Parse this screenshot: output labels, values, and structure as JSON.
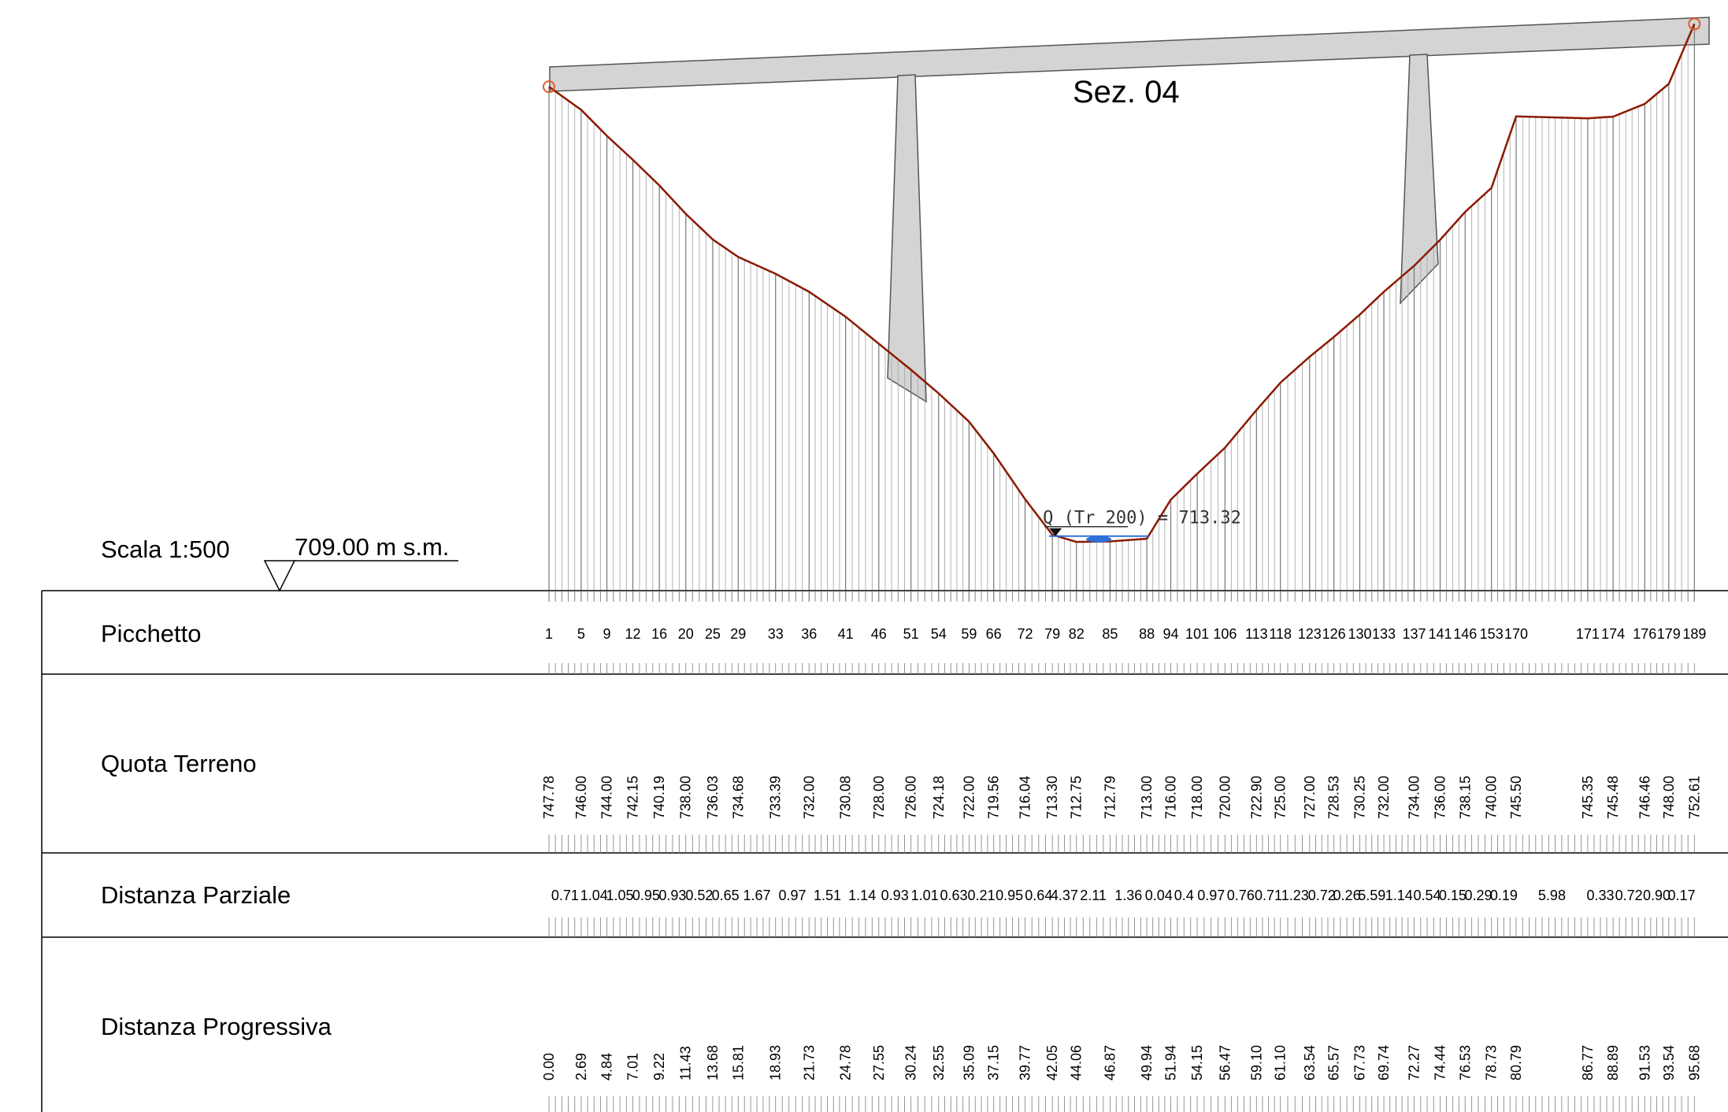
{
  "section_title": "Sez. 04",
  "scale_label": "Scala 1:500",
  "datum_label": "709.00 m s.m.",
  "water_level_label": "Q (Tr 200) = 713.32",
  "colors": {
    "terrain": "#8b1a00",
    "structure_fill": "#d4d4d4",
    "water": "#2f6fd8",
    "endpoint_marker": "#e05a2b"
  },
  "table_rows": {
    "picchetto": "Picchetto",
    "quota_terreno": "Quota Terreno",
    "distanza_parziale": "Distanza Parziale",
    "distanza_progressiva": "Distanza Progressiva"
  },
  "chart_data": {
    "type": "line",
    "title": "Sez. 04",
    "xlabel": "Distanza Progressiva",
    "ylabel": "Quota Terreno",
    "datum": 709.0,
    "water_level": 713.32,
    "stations": [
      {
        "id": "1",
        "x": 0.0,
        "z": 747.78
      },
      {
        "id": "5",
        "x": 2.69,
        "z": 746.0
      },
      {
        "id": "9",
        "x": 4.84,
        "z": 744.0
      },
      {
        "id": "12",
        "x": 7.01,
        "z": 742.15
      },
      {
        "id": "16",
        "x": 9.22,
        "z": 740.19
      },
      {
        "id": "20",
        "x": 11.43,
        "z": 738.0
      },
      {
        "id": "25",
        "x": 13.68,
        "z": 736.03
      },
      {
        "id": "29",
        "x": 15.81,
        "z": 734.68
      },
      {
        "id": "33",
        "x": 18.93,
        "z": 733.39
      },
      {
        "id": "36",
        "x": 21.73,
        "z": 732.0
      },
      {
        "id": "41",
        "x": 24.78,
        "z": 730.08
      },
      {
        "id": "46",
        "x": 27.55,
        "z": 728.0
      },
      {
        "id": "51",
        "x": 30.24,
        "z": 726.0
      },
      {
        "id": "54",
        "x": 32.55,
        "z": 724.18
      },
      {
        "id": "59",
        "x": 35.09,
        "z": 722.0
      },
      {
        "id": "66",
        "x": 37.15,
        "z": 719.56
      },
      {
        "id": "72",
        "x": 39.77,
        "z": 716.04
      },
      {
        "id": "79",
        "x": 42.05,
        "z": 713.3
      },
      {
        "id": "82",
        "x": 44.06,
        "z": 712.75
      },
      {
        "id": "85",
        "x": 46.87,
        "z": 712.79
      },
      {
        "id": "88",
        "x": 49.94,
        "z": 713.0
      },
      {
        "id": "94",
        "x": 51.94,
        "z": 716.0
      },
      {
        "id": "101",
        "x": 54.15,
        "z": 718.0
      },
      {
        "id": "106",
        "x": 56.47,
        "z": 720.0
      },
      {
        "id": "113",
        "x": 59.1,
        "z": 722.9
      },
      {
        "id": "118",
        "x": 61.1,
        "z": 725.0
      },
      {
        "id": "123",
        "x": 63.54,
        "z": 727.0
      },
      {
        "id": "126",
        "x": 65.57,
        "z": 728.53
      },
      {
        "id": "130",
        "x": 67.73,
        "z": 730.25
      },
      {
        "id": "133",
        "x": 69.74,
        "z": 732.0
      },
      {
        "id": "137",
        "x": 72.27,
        "z": 734.0
      },
      {
        "id": "141",
        "x": 74.44,
        "z": 736.0
      },
      {
        "id": "146",
        "x": 76.53,
        "z": 738.15
      },
      {
        "id": "153",
        "x": 78.73,
        "z": 740.0
      },
      {
        "id": "170",
        "x": 80.79,
        "z": 745.5
      },
      {
        "id": "171",
        "x": 86.77,
        "z": 745.35
      },
      {
        "id": "174",
        "x": 88.89,
        "z": 745.48
      },
      {
        "id": "176",
        "x": 91.53,
        "z": 746.46
      },
      {
        "id": "179",
        "x": 93.54,
        "z": 748.0
      },
      {
        "id": "189",
        "x": 95.68,
        "z": 752.61
      }
    ],
    "partial_distances": [
      "0.71",
      "1.04",
      "1.05",
      "0.95",
      "0.93",
      "0.52",
      "0.65",
      "1.67",
      "0.97",
      "1.51",
      "1.14",
      "0.93",
      "1.01",
      "0.63",
      "0.21",
      "0.95",
      "0.64",
      "4.37",
      "2.11",
      "1.36",
      "0.04",
      "0.4",
      "0.97",
      "0.76",
      "0.71",
      "1.23",
      "0.72",
      "0.26",
      "5.59",
      "1.14",
      "0.54",
      "0.15",
      "0.29",
      "0.19",
      "5.98",
      "0.33",
      "0.72",
      "0.90",
      "0.17"
    ]
  }
}
